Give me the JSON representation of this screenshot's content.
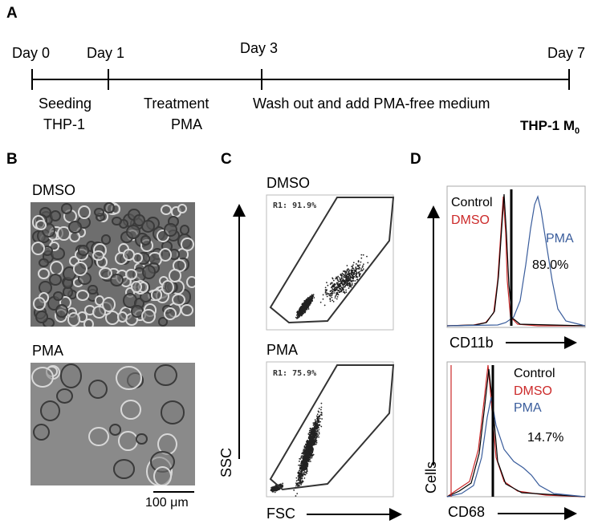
{
  "panels": {
    "a": "A",
    "b": "B",
    "c": "C",
    "d": "D"
  },
  "timeline": {
    "days": [
      "Day 0",
      "Day 1",
      "Day 3",
      "Day 7"
    ],
    "step1_line1": "Seeding",
    "step1_line2": "THP-1",
    "step2_line1": "Treatment",
    "step2_line2": "PMA",
    "step3": "Wash out and add PMA-free medium",
    "result_main": "THP-1 M",
    "result_sub": "0"
  },
  "micrographs": {
    "top_label": "DMSO",
    "bottom_label": "PMA",
    "scale_value": "100",
    "scale_unit": "μm"
  },
  "flow": {
    "top_label": "DMSO",
    "bottom_label": "PMA",
    "top_gate": "R1: 91.9%",
    "bottom_gate": "R1: 75.9%",
    "y_axis": "SSC",
    "x_axis": "FSC"
  },
  "histograms": {
    "top": {
      "legend": [
        "Control",
        "DMSO"
      ],
      "pma_label": "PMA",
      "percent": "89.0%",
      "x_axis": "CD11b"
    },
    "bottom": {
      "legend": [
        "Control",
        "DMSO",
        "PMA"
      ],
      "percent": "14.7%",
      "x_axis": "CD68"
    },
    "y_axis": "Cells",
    "colors": {
      "control": "#000000",
      "dmso": "#cc2a2a",
      "pma": "#3a5d9c"
    }
  }
}
